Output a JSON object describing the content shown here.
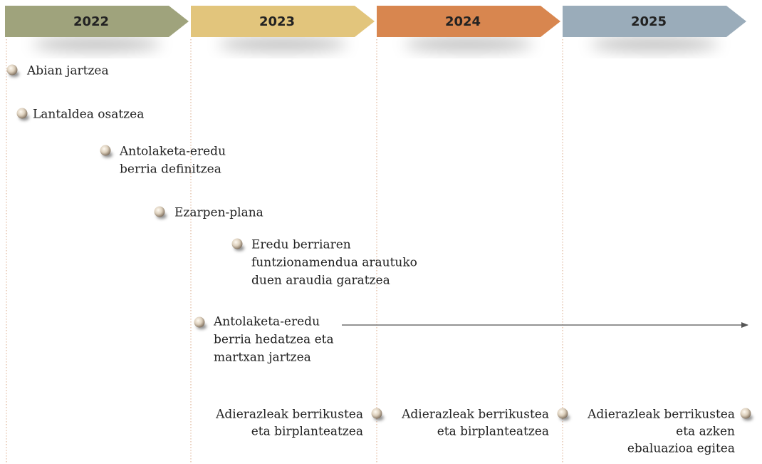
{
  "years": [
    "2022",
    "2023",
    "2024",
    "2025"
  ],
  "milestones": [
    {
      "lines": [
        "Abian jartzea"
      ]
    },
    {
      "lines": [
        "Lantaldea osatzea"
      ]
    },
    {
      "lines": [
        "Antolaketa-eredu",
        "berria definitzea"
      ]
    },
    {
      "lines": [
        "Ezarpen-plana"
      ]
    },
    {
      "lines": [
        "Eredu berriaren",
        "funtzionamendua arautuko",
        "duen araudia garatzea"
      ]
    },
    {
      "lines": [
        "Antolaketa-eredu",
        "berria hedatzea eta",
        "martxan jartzea"
      ]
    }
  ],
  "reviews": [
    {
      "lines": [
        "Adierazleak berrikustea",
        "eta birplanteatzea"
      ]
    },
    {
      "lines": [
        "Adierazleak berrikustea",
        "eta birplanteatzea"
      ]
    },
    {
      "lines": [
        "Adierazleak berrikustea",
        "eta azken",
        "ebaluazioa egitea"
      ]
    }
  ]
}
